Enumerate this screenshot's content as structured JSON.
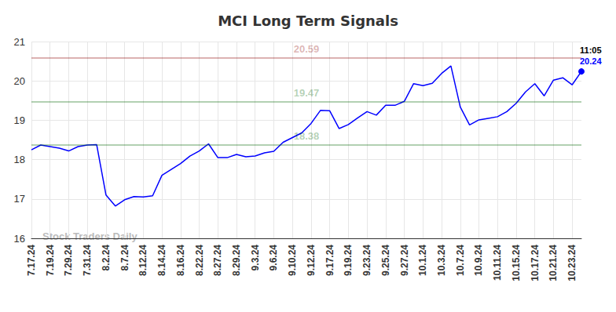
{
  "chart_data": {
    "type": "line",
    "title": "MCI Long Term Signals",
    "watermark": "Stock Traders Daily",
    "time_label": "11:05",
    "categories": [
      "7.17.24",
      null,
      "7.19.24",
      null,
      "7.29.24",
      null,
      "7.31.24",
      null,
      "8.2.24",
      null,
      "8.7.24",
      null,
      "8.12.24",
      null,
      "8.14.24",
      null,
      "8.16.24",
      null,
      "8.22.24",
      null,
      "8.27.24",
      null,
      "8.29.24",
      null,
      "9.3.24",
      null,
      "9.6.24",
      null,
      "9.10.24",
      null,
      "9.12.24",
      null,
      "9.17.24",
      null,
      "9.19.24",
      null,
      "9.23.24",
      null,
      "9.25.24",
      null,
      "9.27.24",
      null,
      "10.1.24",
      null,
      "10.3.24",
      null,
      "10.7.24",
      null,
      "10.9.24",
      null,
      "10.11.24",
      null,
      "10.15.24",
      null,
      "10.17.24",
      null,
      "10.21.24",
      null,
      "10.23.24",
      null
    ],
    "values": [
      18.25,
      18.37,
      18.33,
      18.29,
      18.22,
      18.33,
      18.37,
      18.38,
      17.1,
      16.82,
      16.98,
      17.06,
      17.05,
      17.08,
      17.6,
      17.75,
      17.9,
      18.09,
      18.22,
      18.4,
      18.05,
      18.05,
      18.13,
      18.07,
      18.09,
      18.17,
      18.21,
      18.44,
      18.56,
      18.68,
      18.92,
      19.25,
      19.24,
      18.79,
      18.89,
      19.06,
      19.22,
      19.13,
      19.38,
      19.38,
      19.48,
      19.93,
      19.88,
      19.94,
      20.19,
      20.38,
      19.34,
      18.88,
      19.01,
      19.05,
      19.09,
      19.22,
      19.43,
      19.72,
      19.93,
      19.62,
      20.02,
      20.08,
      19.9,
      20.24
    ],
    "color": "#0000ff",
    "reference_lines": [
      {
        "value": 20.59,
        "color": "#8b0000"
      },
      {
        "value": 19.47,
        "color": "#006400"
      },
      {
        "value": 18.38,
        "color": "#006400"
      }
    ],
    "ylim": [
      16,
      21
    ],
    "yticks": [
      16,
      17,
      18,
      19,
      20,
      21
    ],
    "grid": true
  }
}
